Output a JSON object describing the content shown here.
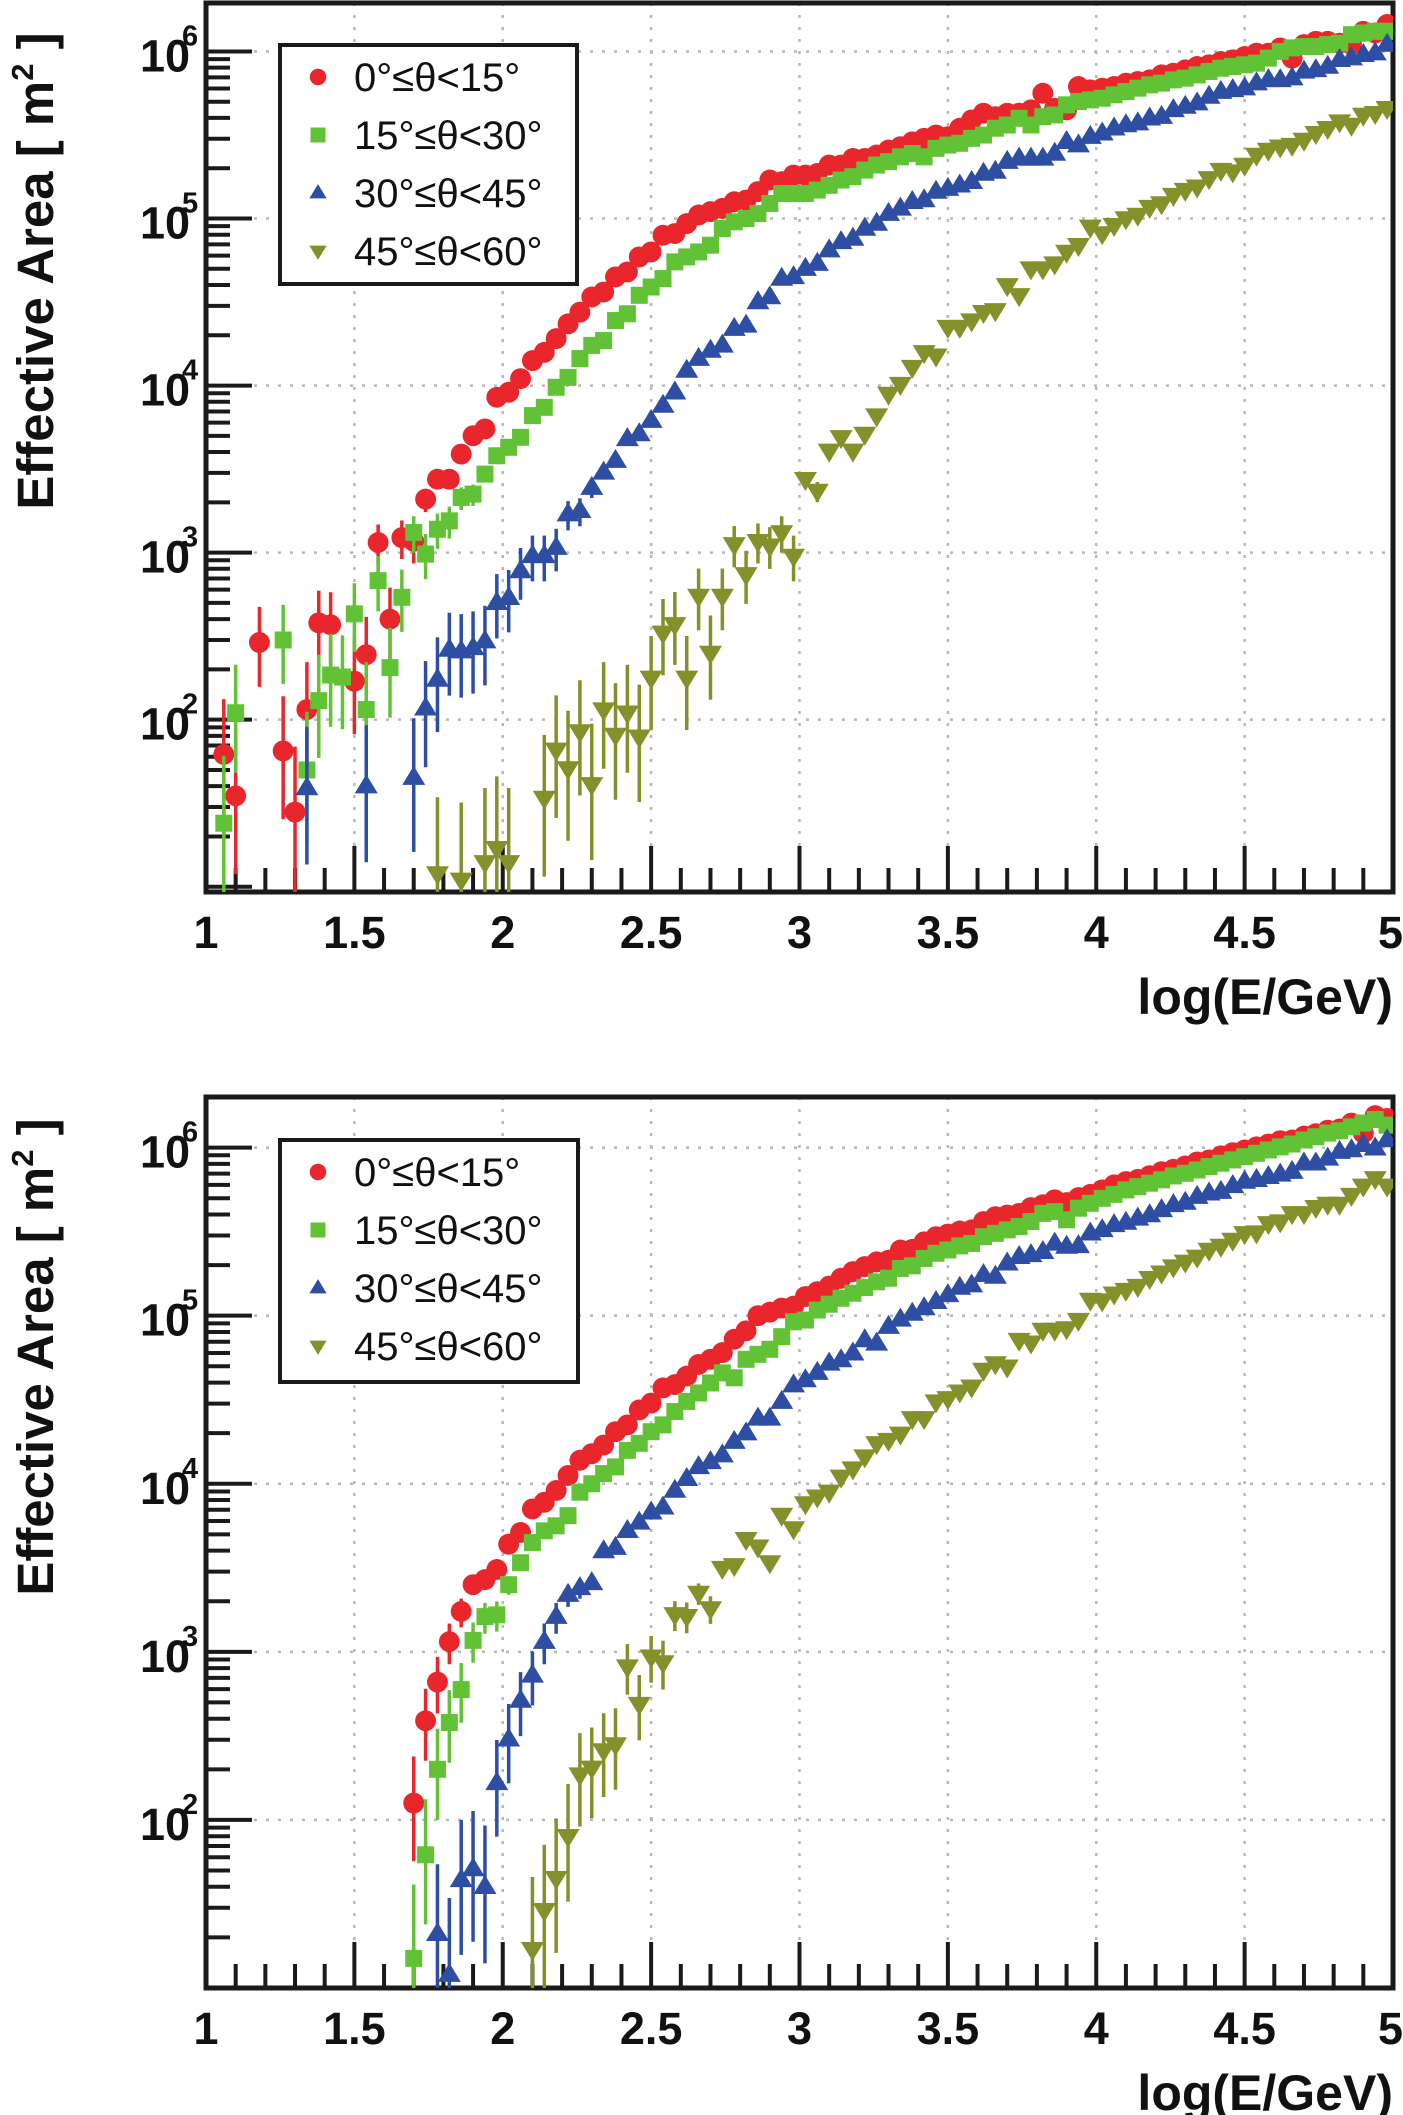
{
  "figure": {
    "panels_label": [
      "top",
      "bottom"
    ]
  },
  "chart_data": [
    {
      "type": "scatter",
      "panel": "top",
      "title": "",
      "xlabel": "log(E/GeV)",
      "ylabel": "Effective Area [ m",
      "ylabel_sup": "2",
      "ylabel_end": " ]",
      "xlim": [
        1,
        5
      ],
      "ylim": [
        9.3,
        1950000
      ],
      "yscale": "log",
      "grid": true,
      "x_ticks": [
        1,
        1.5,
        2,
        2.5,
        3,
        3.5,
        4,
        4.5,
        5
      ],
      "x_tick_labels": [
        "1",
        "1.5",
        "2",
        "2.5",
        "3",
        "3.5",
        "4",
        "4.5",
        "5"
      ],
      "y_ticks": [
        100,
        1000,
        10000,
        100000,
        1000000
      ],
      "y_tick_base": "10",
      "y_tick_exponents": [
        "2",
        "3",
        "4",
        "5",
        "6"
      ],
      "legend_position": "top-left",
      "x_bin_start": 1.02,
      "x_bin_width": 0.04,
      "series": [
        {
          "name": "0°≤θ<15°",
          "marker": "circle",
          "color": "#e8262b",
          "values": [
            null,
            62,
            35,
            null,
            290,
            null,
            65,
            28,
            115,
            380,
            370,
            null,
            170,
            245,
            1150,
            400,
            1230,
            1170,
            2090,
            2750,
            2750,
            3890,
            5010,
            5500,
            8510,
            9120,
            11000,
            14100,
            15800,
            19100,
            23400,
            27500,
            33900,
            36300,
            44700,
            47900,
            58900,
            63100,
            79400,
            81300,
            93300,
            105000,
            110000,
            115000,
            126000,
            129000,
            145000,
            170000,
            166000,
            182000,
            182000,
            186000,
            209000,
            209000,
            229000,
            229000,
            240000,
            257000,
            269000,
            288000,
            302000,
            316000,
            309000,
            347000,
            389000,
            427000,
            407000,
            427000,
            427000,
            447000,
            562000,
            457000,
            447000,
            617000,
            589000,
            603000,
            617000,
            646000,
            661000,
            676000,
            724000,
            741000,
            776000,
            813000,
            832000,
            871000,
            891000,
            933000,
            977000,
            977000,
            1050000,
            912000,
            1100000,
            1150000,
            1150000,
            1120000,
            1100000,
            1320000,
            1290000,
            1450000
          ]
        },
        {
          "name": "15°≤θ<30°",
          "marker": "square",
          "color": "#62c236",
          "values": [
            null,
            24,
            110,
            null,
            null,
            null,
            300,
            null,
            50,
            130,
            185,
            180,
            430,
            115,
            680,
            205,
            540,
            1320,
            980,
            1380,
            1550,
            2140,
            2240,
            2950,
            3800,
            4270,
            4900,
            6610,
            7410,
            9770,
            11200,
            14500,
            17400,
            18600,
            24500,
            26900,
            34700,
            38900,
            43700,
            55000,
            58900,
            63100,
            69200,
            87100,
            95500,
            100000,
            107000,
            123000,
            141000,
            141000,
            141000,
            148000,
            158000,
            170000,
            178000,
            195000,
            209000,
            219000,
            234000,
            245000,
            234000,
            263000,
            275000,
            282000,
            302000,
            316000,
            347000,
            363000,
            398000,
            363000,
            407000,
            417000,
            479000,
            501000,
            513000,
            525000,
            550000,
            575000,
            603000,
            631000,
            646000,
            676000,
            692000,
            724000,
            759000,
            794000,
            813000,
            832000,
            851000,
            912000,
            1000000,
            1050000,
            1070000,
            1070000,
            1100000,
            1120000,
            1260000,
            1290000,
            1320000,
            1320000
          ]
        },
        {
          "name": "30°≤θ<45°",
          "marker": "triangle-up",
          "color": "#2d4ea3",
          "values": [
            null,
            null,
            null,
            null,
            null,
            null,
            null,
            null,
            39,
            null,
            null,
            null,
            null,
            40,
            null,
            null,
            null,
            45,
            117,
            174,
            263,
            257,
            269,
            295,
            501,
            537,
            776,
            955,
            955,
            1070,
            1700,
            1780,
            2450,
            3020,
            3550,
            4790,
            5130,
            6170,
            7590,
            9120,
            12300,
            14500,
            16200,
            17400,
            21900,
            22900,
            31600,
            33900,
            43700,
            44700,
            50100,
            53700,
            64600,
            72400,
            75900,
            87100,
            93300,
            107000,
            115000,
            126000,
            129000,
            145000,
            151000,
            158000,
            166000,
            186000,
            191000,
            219000,
            229000,
            229000,
            229000,
            245000,
            288000,
            275000,
            309000,
            324000,
            347000,
            363000,
            372000,
            398000,
            407000,
            447000,
            468000,
            490000,
            537000,
            575000,
            589000,
            603000,
            646000,
            676000,
            676000,
            692000,
            759000,
            776000,
            813000,
            891000,
            912000,
            955000,
            977000,
            1100000
          ]
        },
        {
          "name": "45°≤θ<60°",
          "marker": "triangle-down",
          "color": "#84902a",
          "values": [
            null,
            null,
            null,
            null,
            null,
            null,
            null,
            null,
            null,
            null,
            null,
            null,
            null,
            null,
            null,
            null,
            null,
            null,
            null,
            12,
            null,
            11,
            null,
            14,
            17,
            14,
            null,
            null,
            34,
            66,
            51,
            85,
            41,
            115,
            81,
            110,
            79,
            178,
            331,
            372,
            178,
            550,
            251,
            550,
            1120,
            741,
            1170,
            1100,
            1320,
            955,
            2750,
            2340,
            4070,
            4900,
            4070,
            5130,
            6610,
            8910,
            10200,
            12900,
            15800,
            15100,
            22400,
            22400,
            24500,
            27500,
            28200,
            39800,
            34700,
            50100,
            50100,
            53700,
            63100,
            69200,
            89100,
            81300,
            91200,
            100000,
            105000,
            117000,
            123000,
            138000,
            148000,
            155000,
            174000,
            195000,
            191000,
            209000,
            240000,
            257000,
            269000,
            275000,
            295000,
            324000,
            347000,
            380000,
            363000,
            417000,
            427000,
            457000
          ]
        }
      ]
    },
    {
      "type": "scatter",
      "panel": "bottom",
      "title": "",
      "xlabel": "log(E/GeV)",
      "ylabel": "Effective Area [ m",
      "ylabel_sup": "2",
      "ylabel_end": " ]",
      "xlim": [
        1,
        5
      ],
      "ylim": [
        10,
        2000000
      ],
      "yscale": "log",
      "grid": true,
      "x_ticks": [
        1,
        1.5,
        2,
        2.5,
        3,
        3.5,
        4,
        4.5,
        5
      ],
      "x_tick_labels": [
        "1",
        "1.5",
        "2",
        "2.5",
        "3",
        "3.5",
        "4",
        "4.5",
        "5"
      ],
      "y_ticks": [
        100,
        1000,
        10000,
        100000,
        1000000
      ],
      "y_tick_base": "10",
      "y_tick_exponents": [
        "2",
        "3",
        "4",
        "5",
        "6"
      ],
      "legend_position": "top-left",
      "x_bin_start": 1.02,
      "x_bin_width": 0.04,
      "series": [
        {
          "name": "0°≤θ<15°",
          "marker": "circle",
          "color": "#e8262b",
          "values": [
            null,
            null,
            null,
            null,
            null,
            null,
            null,
            null,
            null,
            null,
            null,
            null,
            null,
            null,
            null,
            null,
            null,
            126,
            389,
            661,
            1150,
            1740,
            2510,
            2690,
            3090,
            4370,
            5130,
            7080,
            7760,
            9120,
            11200,
            13800,
            15100,
            17000,
            20400,
            22400,
            27500,
            30200,
            37200,
            38900,
            43700,
            51300,
            55000,
            60300,
            72400,
            81300,
            100000,
            105000,
            111000,
            114000,
            130000,
            139000,
            150000,
            167000,
            183000,
            196000,
            209000,
            214000,
            246000,
            248000,
            275000,
            295000,
            306000,
            319000,
            324000,
            363000,
            388000,
            397000,
            406000,
            440000,
            457000,
            489000,
            471000,
            504000,
            527000,
            560000,
            600000,
            628000,
            647000,
            681000,
            719000,
            743000,
            778000,
            822000,
            845000,
            893000,
            933000,
            968000,
            1010000,
            1050000,
            1100000,
            1110000,
            1170000,
            1210000,
            1270000,
            1290000,
            1400000,
            1220000,
            1550000,
            1490000
          ]
        },
        {
          "name": "15°≤θ<30°",
          "marker": "square",
          "color": "#62c236",
          "values": [
            null,
            null,
            null,
            null,
            null,
            null,
            null,
            null,
            null,
            null,
            null,
            null,
            null,
            null,
            null,
            null,
            null,
            15,
            62,
            200,
            380,
            596,
            1170,
            1620,
            1660,
            2510,
            3390,
            4470,
            5250,
            5620,
            6460,
            8910,
            10000,
            11500,
            12600,
            15800,
            17400,
            20400,
            22400,
            26900,
            30900,
            34700,
            39800,
            45700,
            42700,
            55000,
            58900,
            63100,
            75000,
            92000,
            94200,
            108000,
            117000,
            127000,
            136000,
            147000,
            159000,
            167000,
            191000,
            198000,
            219000,
            235000,
            246000,
            260000,
            269000,
            295000,
            309000,
            324000,
            339000,
            363000,
            406000,
            416000,
            372000,
            436000,
            466000,
            499000,
            527000,
            560000,
            586000,
            614000,
            643000,
            678000,
            703000,
            736000,
            771000,
            807000,
            845000,
            883000,
            925000,
            968000,
            1010000,
            1050000,
            1110000,
            1160000,
            1220000,
            1260000,
            1330000,
            1400000,
            1470000,
            1360000
          ]
        },
        {
          "name": "30°≤θ<45°",
          "marker": "triangle-up",
          "color": "#2d4ea3",
          "values": [
            null,
            null,
            null,
            null,
            null,
            null,
            null,
            null,
            null,
            null,
            null,
            null,
            null,
            null,
            null,
            null,
            null,
            null,
            null,
            21,
            12,
            44,
            51,
            40,
            166,
            302,
            513,
            724,
            1150,
            1620,
            2190,
            2400,
            2570,
            3980,
            4170,
            5250,
            5890,
            6760,
            7240,
            9120,
            10700,
            12600,
            13500,
            14800,
            17800,
            20000,
            24500,
            24500,
            30800,
            38600,
            41400,
            45800,
            52000,
            54500,
            59700,
            71600,
            68400,
            86100,
            95100,
            103000,
            111000,
            121000,
            133000,
            147000,
            152000,
            175000,
            171000,
            205000,
            224000,
            230000,
            240000,
            269000,
            258000,
            260000,
            309000,
            324000,
            347000,
            358000,
            379000,
            397000,
            426000,
            456000,
            471000,
            511000,
            535000,
            547000,
            592000,
            628000,
            643000,
            671000,
            693000,
            719000,
            807000,
            807000,
            863000,
            946000,
            968000,
            1040000,
            991000,
            1110000
          ]
        },
        {
          "name": "45°≤θ<60°",
          "marker": "triangle-down",
          "color": "#84902a",
          "values": [
            null,
            null,
            null,
            null,
            null,
            null,
            null,
            null,
            null,
            null,
            null,
            null,
            null,
            null,
            null,
            null,
            null,
            null,
            null,
            null,
            null,
            null,
            null,
            null,
            null,
            null,
            null,
            17,
            29,
            45,
            80,
            186,
            204,
            259,
            281,
            817,
            489,
            935,
            865,
            1670,
            1630,
            2240,
            1810,
            3150,
            3270,
            4680,
            4220,
            3400,
            6520,
            5420,
            7640,
            8370,
            8950,
            11000,
            12300,
            14500,
            17400,
            18200,
            19800,
            24500,
            24500,
            30800,
            32200,
            35300,
            37800,
            47500,
            52000,
            49700,
            71600,
            69000,
            82200,
            82200,
            83900,
            94200,
            124000,
            123000,
            135000,
            142000,
            150000,
            167000,
            180000,
            196000,
            209000,
            224000,
            246000,
            260000,
            282000,
            309000,
            312000,
            354000,
            363000,
            406000,
            406000,
            442000,
            462000,
            462000,
            522000,
            592000,
            656000,
            592000
          ]
        }
      ]
    }
  ]
}
